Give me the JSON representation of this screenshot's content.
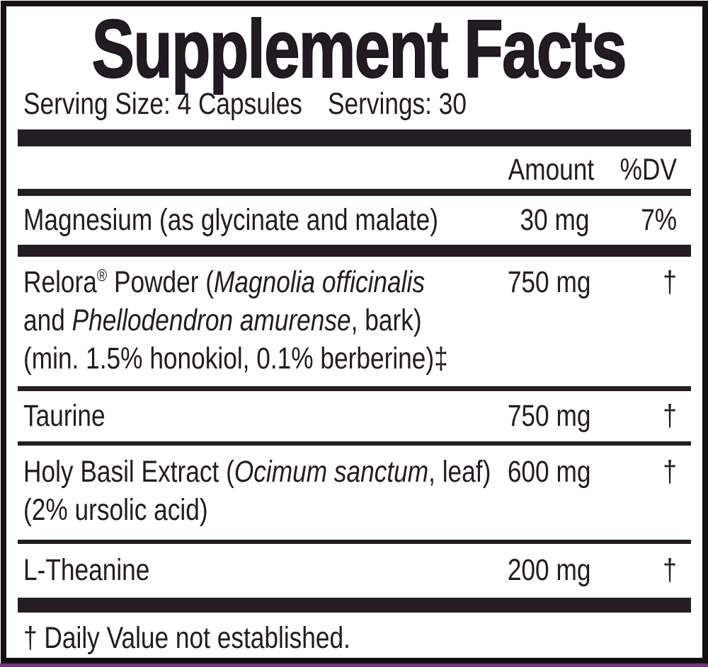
{
  "panel": {
    "title": "Supplement Facts",
    "serving_size": "Serving Size: 4 Capsules",
    "servings": "Servings: 30",
    "columns": {
      "amount": "Amount",
      "dv": "%DV"
    },
    "rows": [
      {
        "name_lines": [
          [
            {
              "text": "Magnesium (as glycinate and malate)",
              "style": "normal"
            }
          ]
        ],
        "amount": "30 mg",
        "dv": "7%"
      },
      {
        "name_lines": [
          [
            {
              "text": "Relora",
              "style": "normal"
            },
            {
              "text": "®",
              "style": "sup"
            },
            {
              "text": " Powder (",
              "style": "normal"
            },
            {
              "text": "Magnolia officinalis",
              "style": "italic"
            }
          ],
          [
            {
              "text": "and ",
              "style": "normal"
            },
            {
              "text": "Phellodendron amurense",
              "style": "italic"
            },
            {
              "text": ", bark)",
              "style": "normal"
            }
          ],
          [
            {
              "text": "(min. 1.5% honokiol, 0.1% berberine)‡",
              "style": "normal"
            }
          ]
        ],
        "amount": "750 mg",
        "dv": "†"
      },
      {
        "name_lines": [
          [
            {
              "text": "Taurine",
              "style": "normal"
            }
          ]
        ],
        "amount": "750 mg",
        "dv": "†"
      },
      {
        "name_lines": [
          [
            {
              "text": "Holy Basil Extract (",
              "style": "normal"
            },
            {
              "text": "Ocimum sanctum",
              "style": "italic"
            },
            {
              "text": ", leaf)",
              "style": "normal"
            }
          ],
          [
            {
              "text": "(2% ursolic acid)",
              "style": "normal"
            }
          ]
        ],
        "amount": "600 mg",
        "dv": "†"
      },
      {
        "name_lines": [
          [
            {
              "text": "L-Theanine",
              "style": "normal"
            }
          ]
        ],
        "amount": "200 mg",
        "dv": "†"
      }
    ],
    "footnote": "† Daily Value not established.",
    "colors": {
      "ink": "#241d23",
      "accent_line": "#7b2e86"
    }
  }
}
